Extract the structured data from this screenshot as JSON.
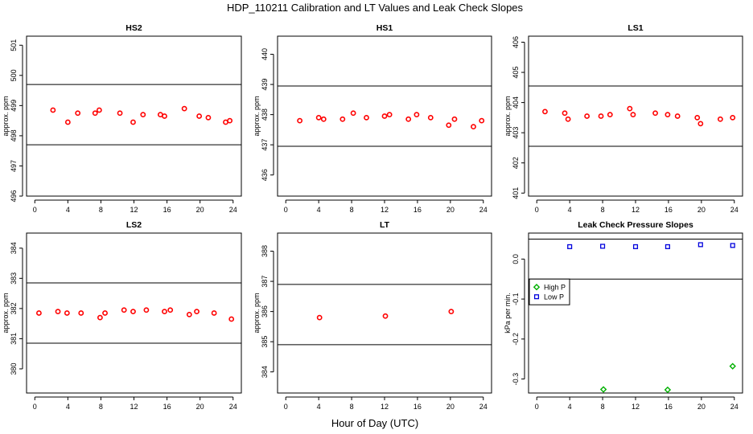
{
  "title": "HDP_110211  Calibration and LT Values and Leak Check Slopes",
  "xlabel": "Hour of Day (UTC)",
  "chart_data": [
    {
      "type": "scatter",
      "title": "HS2",
      "ylabel": "approx. ppm",
      "xlim": [
        -1,
        25
      ],
      "ylim": [
        496,
        501.3
      ],
      "xticks": [
        0,
        4,
        8,
        12,
        16,
        20,
        24
      ],
      "yticks": [
        496,
        497,
        498,
        499,
        500,
        501
      ],
      "hlines": [
        497.7,
        499.7
      ],
      "series": [
        {
          "marker": "circle",
          "color": "#ff0000",
          "x": [
            2.2,
            4.0,
            5.2,
            7.3,
            7.8,
            10.3,
            11.9,
            13.1,
            15.2,
            15.7,
            18.1,
            19.9,
            21.0,
            23.1,
            23.6
          ],
          "y": [
            498.85,
            498.45,
            498.75,
            498.75,
            498.85,
            498.75,
            498.45,
            498.7,
            498.7,
            498.65,
            498.9,
            498.65,
            498.6,
            498.45,
            498.5
          ]
        }
      ]
    },
    {
      "type": "scatter",
      "title": "HS1",
      "ylabel": "approx. ppm",
      "xlim": [
        -1,
        25
      ],
      "ylim": [
        435.3,
        440.6
      ],
      "xticks": [
        0,
        4,
        8,
        12,
        16,
        20,
        24
      ],
      "yticks": [
        436,
        437,
        438,
        439,
        440
      ],
      "hlines": [
        436.95,
        438.95
      ],
      "series": [
        {
          "marker": "circle",
          "color": "#ff0000",
          "x": [
            1.7,
            4.0,
            4.6,
            6.9,
            8.2,
            9.8,
            12.0,
            12.6,
            14.9,
            15.9,
            17.6,
            19.8,
            20.5,
            22.8,
            23.8
          ],
          "y": [
            437.8,
            437.9,
            437.85,
            437.85,
            438.05,
            437.9,
            437.95,
            438.0,
            437.85,
            438.0,
            437.9,
            437.65,
            437.85,
            437.6,
            437.8
          ]
        }
      ]
    },
    {
      "type": "scatter",
      "title": "LS1",
      "ylabel": "approx. ppm",
      "xlim": [
        -1,
        25
      ],
      "ylim": [
        400.9,
        406.2
      ],
      "xticks": [
        0,
        4,
        8,
        12,
        16,
        20,
        24
      ],
      "yticks": [
        401,
        402,
        403,
        404,
        405,
        406
      ],
      "hlines": [
        402.55,
        404.55
      ],
      "series": [
        {
          "marker": "circle",
          "color": "#ff0000",
          "x": [
            1.0,
            3.4,
            3.8,
            6.1,
            7.8,
            8.9,
            11.3,
            11.7,
            14.4,
            15.9,
            17.1,
            19.5,
            19.9,
            22.3,
            23.8
          ],
          "y": [
            403.7,
            403.65,
            403.45,
            403.55,
            403.55,
            403.6,
            403.8,
            403.6,
            403.65,
            403.6,
            403.55,
            403.5,
            403.3,
            403.45,
            403.5
          ]
        }
      ]
    },
    {
      "type": "scatter",
      "title": "LS2",
      "ylabel": "approx. ppm",
      "xlim": [
        -1,
        25
      ],
      "ylim": [
        379.2,
        384.5
      ],
      "xticks": [
        0,
        4,
        8,
        12,
        16,
        20,
        24
      ],
      "yticks": [
        380,
        381,
        382,
        383,
        384
      ],
      "hlines": [
        380.85,
        382.85
      ],
      "series": [
        {
          "marker": "circle",
          "color": "#ff0000",
          "x": [
            0.5,
            2.8,
            3.9,
            5.6,
            7.9,
            8.5,
            10.8,
            11.9,
            13.5,
            15.7,
            16.4,
            18.7,
            19.6,
            21.7,
            23.8
          ],
          "y": [
            381.85,
            381.9,
            381.85,
            381.85,
            381.7,
            381.85,
            381.95,
            381.9,
            381.95,
            381.9,
            381.95,
            381.8,
            381.9,
            381.85,
            381.65
          ]
        }
      ]
    },
    {
      "type": "scatter",
      "title": "LT",
      "ylabel": "approx. ppm",
      "xlim": [
        -1,
        25
      ],
      "ylim": [
        383.3,
        388.6
      ],
      "xticks": [
        0,
        4,
        8,
        12,
        16,
        20,
        24
      ],
      "yticks": [
        384,
        385,
        386,
        387,
        388
      ],
      "hlines": [
        384.9,
        386.9
      ],
      "series": [
        {
          "marker": "circle",
          "color": "#ff0000",
          "x": [
            4.1,
            12.1,
            20.1
          ],
          "y": [
            385.8,
            385.85,
            386.0
          ]
        }
      ]
    },
    {
      "type": "scatter",
      "title": "Leak Check Pressure Slopes",
      "ylabel": "kPa per min.",
      "xlim": [
        -1,
        25
      ],
      "ylim": [
        -0.335,
        0.065
      ],
      "xticks": [
        0,
        4,
        8,
        12,
        16,
        20,
        24
      ],
      "yticks": [
        -0.3,
        -0.2,
        -0.1,
        0.0
      ],
      "yticklabels": [
        "-0.3",
        "-0.2",
        "-0.1",
        "0.0"
      ],
      "hlines": [
        0.05,
        -0.05
      ],
      "legend": {
        "placement": "middle-left",
        "entries": [
          "High P",
          "Low P"
        ]
      },
      "series": [
        {
          "name": "High P",
          "marker": "diamond",
          "color": "#00b000",
          "x": [
            8.1,
            15.9,
            23.8
          ],
          "y": [
            -0.326,
            -0.327,
            -0.268
          ]
        },
        {
          "name": "Low P",
          "marker": "square",
          "color": "#0000dd",
          "x": [
            4.0,
            8.0,
            12.0,
            15.9,
            19.9,
            23.8
          ],
          "y": [
            0.031,
            0.032,
            0.031,
            0.031,
            0.036,
            0.034
          ]
        }
      ]
    }
  ]
}
